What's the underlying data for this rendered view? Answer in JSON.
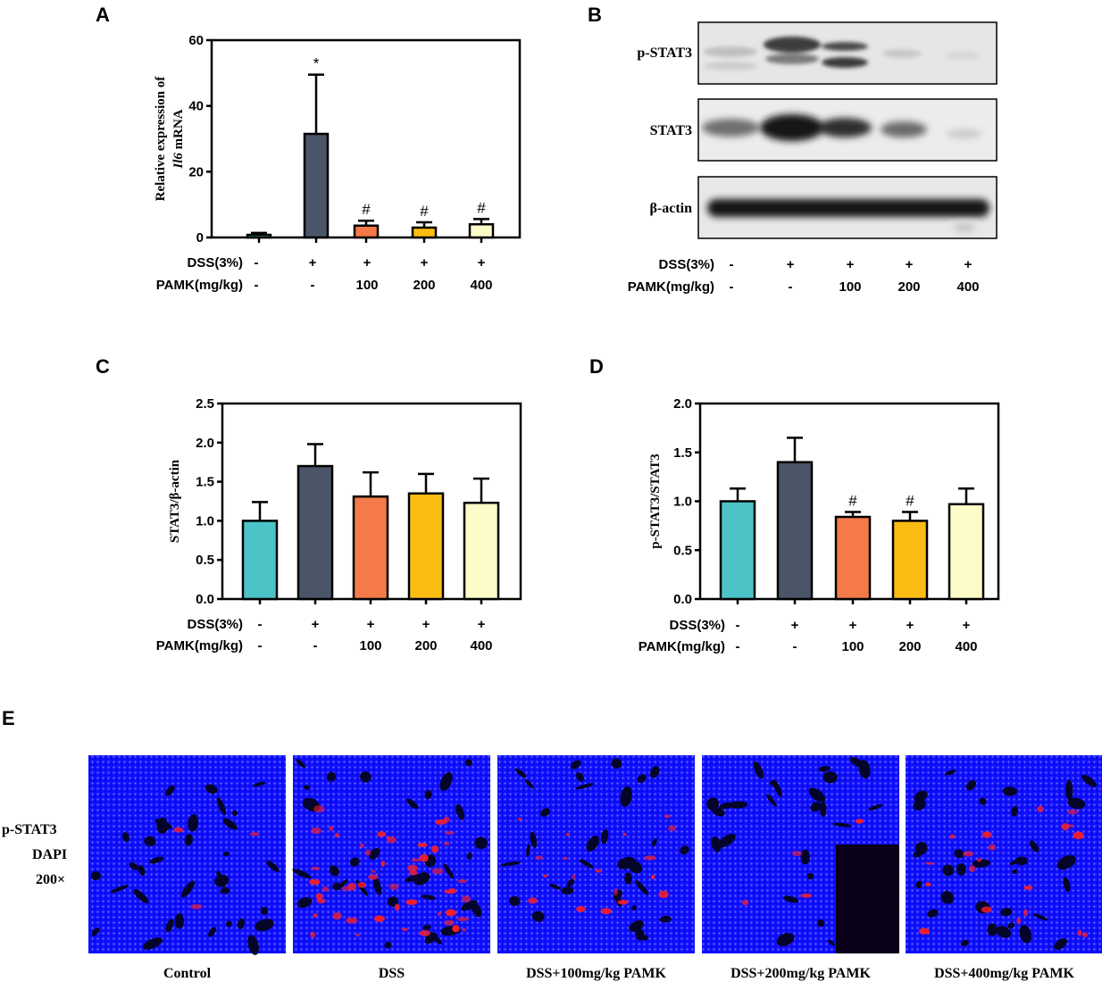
{
  "panels": {
    "A": "A",
    "B": "B",
    "C": "C",
    "D": "D",
    "E": "E"
  },
  "conditions": {
    "dss_label": "DSS(3%)",
    "pamk_label": "PAMK(mg/kg)",
    "dss_values": [
      "-",
      "+",
      "+",
      "+",
      "+"
    ],
    "pamk_values": [
      "-",
      "-",
      "100",
      "200",
      "400"
    ]
  },
  "colors": [
    "#4cc3c6",
    "#4a5568",
    "#f47a4a",
    "#fbbd14",
    "#fcfcc8"
  ],
  "chart_data": [
    {
      "type": "bar",
      "panel": "A",
      "ylabel_pre": "Relative expression of",
      "ylabel_gene": "Il6",
      "ylabel_post": "mRNA",
      "categories": [
        "Control",
        "DSS",
        "DSS+100",
        "DSS+200",
        "DSS+400"
      ],
      "values": [
        0.8,
        31.5,
        3.6,
        3.0,
        4.0
      ],
      "errors": [
        0.6,
        18.0,
        1.5,
        1.6,
        1.6
      ],
      "significance": [
        "",
        "*",
        "#",
        "#",
        "#"
      ],
      "ylim": [
        0,
        60
      ],
      "yticks": [
        0,
        20,
        40,
        60
      ],
      "colors": [
        "#4cc3c6",
        "#4a5568",
        "#f47a4a",
        "#fbbd14",
        "#fcfcc8"
      ]
    },
    {
      "type": "bar",
      "panel": "C",
      "ylabel": "STAT3/β-actin",
      "categories": [
        "Control",
        "DSS",
        "DSS+100",
        "DSS+200",
        "DSS+400"
      ],
      "values": [
        1.0,
        1.7,
        1.31,
        1.35,
        1.23
      ],
      "errors": [
        0.24,
        0.28,
        0.31,
        0.25,
        0.31
      ],
      "significance": [
        "",
        "",
        "",
        "",
        ""
      ],
      "ylim": [
        0,
        2.5
      ],
      "yticks": [
        "0.0",
        "0.5",
        "1.0",
        "1.5",
        "2.0",
        "2.5"
      ],
      "colors": [
        "#4cc3c6",
        "#4a5568",
        "#f47a4a",
        "#fbbd14",
        "#fcfcc8"
      ]
    },
    {
      "type": "bar",
      "panel": "D",
      "ylabel": "p-STAT3/STAT3",
      "categories": [
        "Control",
        "DSS",
        "DSS+100",
        "DSS+200",
        "DSS+400"
      ],
      "values": [
        1.0,
        1.4,
        0.84,
        0.8,
        0.97
      ],
      "errors": [
        0.13,
        0.25,
        0.05,
        0.09,
        0.16
      ],
      "significance": [
        "",
        "",
        "#",
        "#",
        ""
      ],
      "ylim": [
        0,
        2.0
      ],
      "yticks": [
        "0.0",
        "0.5",
        "1.0",
        "1.5",
        "2.0"
      ],
      "colors": [
        "#4cc3c6",
        "#4a5568",
        "#f47a4a",
        "#fbbd14",
        "#fcfcc8"
      ]
    }
  ],
  "blot": {
    "rows": [
      "p-STAT3",
      "STAT3",
      "β-actin"
    ]
  },
  "if_panel": {
    "legend": [
      {
        "text": "p-STAT3",
        "color": "#ff2a2a"
      },
      {
        "text": "DAPI",
        "color": "#1e78d2"
      },
      {
        "text": "200×",
        "color": "#000000"
      }
    ],
    "captions": [
      "Control",
      "DSS",
      "DSS+100mg/kg PAMK",
      "DSS+200mg/kg PAMK",
      "DSS+400mg/kg PAMK"
    ],
    "red_levels": [
      0.05,
      0.9,
      0.3,
      0.1,
      0.35
    ]
  }
}
